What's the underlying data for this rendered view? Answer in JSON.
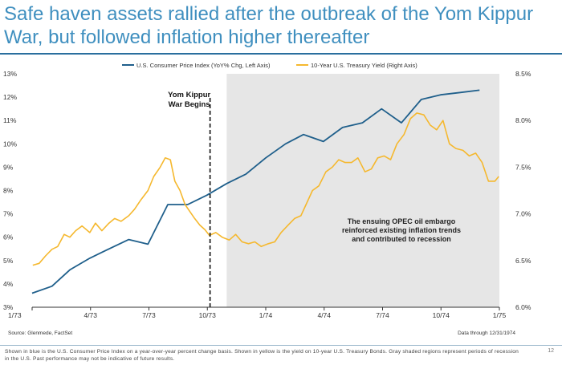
{
  "title": "Safe haven assets rallied after the outbreak of the Yom Kippur War, but followed inflation higher thereafter",
  "source": "Source: Glenmede, FactSet",
  "data_through": "Data through 12/31/1974",
  "footnote": "Shown in blue is the U.S. Consumer Price Index on a year-over-year percent change basis. Shown in yellow is the yield on 10-year U.S. Treasury Bonds. Gray shaded regions represent periods of recession in the U.S. Past performance may not be indicative of future results.",
  "page_number": "12",
  "colors": {
    "cpi": "#1f5f8b",
    "treasury": "#f5b82e",
    "recession": "#e6e6e6",
    "title": "#3f8fbf"
  },
  "chart_data": {
    "type": "line",
    "x_ticks": [
      "1/73",
      "4/73",
      "7/73",
      "10/73",
      "1/74",
      "4/74",
      "7/74",
      "10/74",
      "1/75"
    ],
    "x_range": [
      "1973-01-01",
      "1975-01-01"
    ],
    "y_left": {
      "ticks": [
        "3%",
        "4%",
        "5%",
        "6%",
        "7%",
        "8%",
        "9%",
        "10%",
        "11%",
        "12%",
        "13%"
      ],
      "range": [
        3,
        13
      ]
    },
    "y_right": {
      "ticks": [
        "6.0%",
        "6.5%",
        "7.0%",
        "7.5%",
        "8.0%",
        "8.5%"
      ],
      "range": [
        6.0,
        8.5
      ]
    },
    "legend_placement": "top-center",
    "recession": {
      "start": "1973-11-01",
      "end": "1975-01-01"
    },
    "event": {
      "date": "1973-10-06",
      "label_lines": [
        "Yom Kippur",
        "War Begins"
      ]
    },
    "annotation_lines": [
      "The ensuing OPEC oil embargo",
      "reinforced existing inflation trends",
      "and contributed to recession"
    ],
    "series": [
      {
        "name": "U.S. Consumer Price Index (YoY% Chg, Left Axis)",
        "axis": "left",
        "x": [
          "1973-01-01",
          "1973-02-01",
          "1973-03-01",
          "1973-04-01",
          "1973-05-01",
          "1973-06-01",
          "1973-07-01",
          "1973-08-01",
          "1973-09-01",
          "1973-10-01",
          "1973-11-01",
          "1973-12-01",
          "1974-01-01",
          "1974-02-01",
          "1974-03-01",
          "1974-04-01",
          "1974-05-01",
          "1974-06-01",
          "1974-07-01",
          "1974-08-01",
          "1974-09-01",
          "1974-10-01",
          "1974-11-01",
          "1974-12-01"
        ],
        "values": [
          3.6,
          3.9,
          4.6,
          5.1,
          5.5,
          5.9,
          5.7,
          7.4,
          7.4,
          7.8,
          8.3,
          8.7,
          9.4,
          10.0,
          10.4,
          10.1,
          10.7,
          10.9,
          11.5,
          10.9,
          11.9,
          12.1,
          12.2,
          12.3
        ]
      },
      {
        "name": "10-Year U.S. Treasury Yield (Right Axis)",
        "axis": "right",
        "x": [
          "1973-01-02",
          "1973-01-12",
          "1973-01-22",
          "1973-02-01",
          "1973-02-10",
          "1973-02-20",
          "1973-03-01",
          "1973-03-10",
          "1973-03-20",
          "1973-04-01",
          "1973-04-10",
          "1973-04-20",
          "1973-05-01",
          "1973-05-10",
          "1973-05-20",
          "1973-06-01",
          "1973-06-10",
          "1973-06-20",
          "1973-07-01",
          "1973-07-10",
          "1973-07-20",
          "1973-07-28",
          "1973-08-05",
          "1973-08-12",
          "1973-08-20",
          "1973-08-28",
          "1973-09-05",
          "1973-09-12",
          "1973-09-20",
          "1973-09-28",
          "1973-10-05",
          "1973-10-15",
          "1973-10-25",
          "1973-11-05",
          "1973-11-15",
          "1973-11-25",
          "1973-12-05",
          "1973-12-15",
          "1973-12-25",
          "1974-01-05",
          "1974-01-15",
          "1974-01-25",
          "1974-02-05",
          "1974-02-15",
          "1974-02-25",
          "1974-03-05",
          "1974-03-15",
          "1974-03-25",
          "1974-04-05",
          "1974-04-15",
          "1974-04-25",
          "1974-05-05",
          "1974-05-15",
          "1974-05-25",
          "1974-06-05",
          "1974-06-15",
          "1974-06-25",
          "1974-07-05",
          "1974-07-15",
          "1974-07-25",
          "1974-08-05",
          "1974-08-15",
          "1974-08-25",
          "1974-09-05",
          "1974-09-15",
          "1974-09-25",
          "1974-10-05",
          "1974-10-15",
          "1974-10-25",
          "1974-11-05",
          "1974-11-15",
          "1974-11-25",
          "1974-12-05",
          "1974-12-15",
          "1974-12-25",
          "1974-12-31"
        ],
        "values": [
          6.45,
          6.47,
          6.55,
          6.62,
          6.65,
          6.78,
          6.75,
          6.82,
          6.87,
          6.8,
          6.9,
          6.82,
          6.9,
          6.95,
          6.92,
          6.98,
          7.05,
          7.15,
          7.25,
          7.4,
          7.5,
          7.6,
          7.58,
          7.35,
          7.25,
          7.1,
          7.02,
          6.95,
          6.88,
          6.83,
          6.77,
          6.8,
          6.75,
          6.72,
          6.78,
          6.7,
          6.68,
          6.7,
          6.65,
          6.68,
          6.7,
          6.8,
          6.88,
          6.95,
          6.98,
          7.1,
          7.25,
          7.3,
          7.45,
          7.5,
          7.58,
          7.55,
          7.55,
          7.6,
          7.45,
          7.48,
          7.6,
          7.62,
          7.58,
          7.75,
          7.85,
          8.02,
          8.08,
          8.06,
          7.95,
          7.9,
          8.0,
          7.75,
          7.7,
          7.68,
          7.62,
          7.65,
          7.55,
          7.35,
          7.35,
          7.4
        ]
      }
    ]
  }
}
